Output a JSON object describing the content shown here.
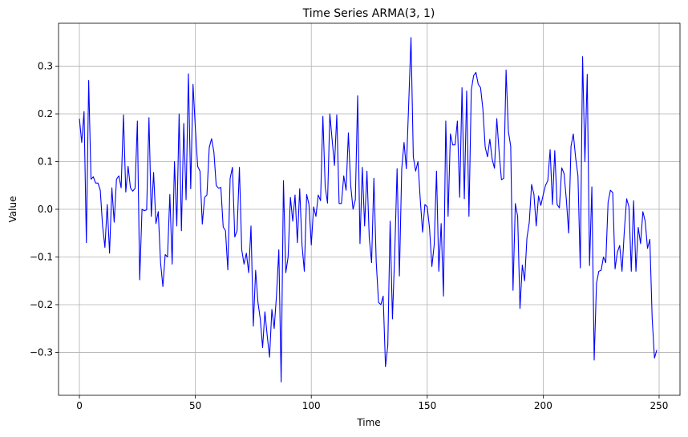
{
  "chart_data": {
    "type": "line",
    "title": "Time Series ARMA(3, 1)",
    "xlabel": "Time",
    "ylabel": "Value",
    "xlim": [
      -9,
      259
    ],
    "ylim": [
      -0.39,
      0.39
    ],
    "xticks": [
      0,
      50,
      100,
      150,
      200,
      250
    ],
    "yticks": [
      -0.3,
      -0.2,
      -0.1,
      0.0,
      0.1,
      0.2,
      0.3
    ],
    "ytick_labels": [
      "−0.3",
      "−0.2",
      "−0.1",
      "0.0",
      "0.1",
      "0.2",
      "0.3"
    ],
    "grid": true,
    "series": [
      {
        "color": "#0000ff",
        "x_start": 0,
        "x_step": 1,
        "values": [
          0.19,
          0.14,
          0.205,
          -0.07,
          0.27,
          0.063,
          0.068,
          0.055,
          0.055,
          0.04,
          -0.035,
          -0.08,
          0.01,
          -0.092,
          0.045,
          -0.027,
          0.063,
          0.07,
          0.045,
          0.198,
          0.036,
          0.09,
          0.045,
          0.038,
          0.044,
          0.185,
          -0.148,
          0.0,
          -0.003,
          -0.001,
          0.192,
          -0.015,
          0.077,
          -0.03,
          -0.005,
          -0.112,
          -0.162,
          -0.095,
          -0.1,
          0.031,
          -0.115,
          0.1,
          -0.035,
          0.2,
          -0.045,
          0.18,
          0.02,
          0.284,
          0.043,
          0.262,
          0.17,
          0.09,
          0.08,
          -0.031,
          0.025,
          0.03,
          0.13,
          0.148,
          0.12,
          0.05,
          0.044,
          0.046,
          -0.037,
          -0.045,
          -0.127,
          0.065,
          0.088,
          -0.058,
          -0.045,
          0.088,
          -0.085,
          -0.115,
          -0.092,
          -0.133,
          -0.035,
          -0.245,
          -0.128,
          -0.195,
          -0.23,
          -0.29,
          -0.215,
          -0.265,
          -0.31,
          -0.21,
          -0.25,
          -0.18,
          -0.085,
          -0.362,
          0.06,
          -0.133,
          -0.1,
          0.025,
          -0.025,
          0.03,
          -0.07,
          0.043,
          -0.075,
          -0.13,
          0.031,
          0.01,
          -0.075,
          0.005,
          -0.015,
          0.03,
          0.018,
          0.195,
          0.047,
          0.013,
          0.2,
          0.145,
          0.092,
          0.198,
          0.012,
          0.012,
          0.07,
          0.04,
          0.16,
          0.05,
          0.0,
          0.02,
          0.238,
          -0.072,
          0.088,
          -0.035,
          0.08,
          -0.06,
          -0.112,
          0.065,
          -0.11,
          -0.195,
          -0.2,
          -0.182,
          -0.33,
          -0.285,
          -0.025,
          -0.23,
          -0.09,
          0.085,
          -0.14,
          0.085,
          0.14,
          0.085,
          0.22,
          0.36,
          0.11,
          0.08,
          0.1,
          0.02,
          -0.048,
          0.01,
          0.005,
          -0.04,
          -0.12,
          -0.075,
          0.08,
          -0.13,
          -0.03,
          -0.182,
          0.185,
          -0.015,
          0.158,
          0.135,
          0.135,
          0.185,
          0.025,
          0.255,
          0.022,
          0.248,
          -0.015,
          0.25,
          0.28,
          0.287,
          0.262,
          0.255,
          0.21,
          0.13,
          0.11,
          0.147,
          0.105,
          0.086,
          0.19,
          0.12,
          0.062,
          0.065,
          0.292,
          0.163,
          0.132,
          -0.17,
          0.012,
          -0.015,
          -0.208,
          -0.117,
          -0.15,
          -0.06,
          -0.028,
          0.052,
          0.032,
          -0.035,
          0.028,
          0.008,
          0.03,
          0.05,
          0.06,
          0.125,
          0.01,
          0.123,
          0.01,
          0.003,
          0.087,
          0.075,
          0.02,
          -0.05,
          0.132,
          0.158,
          0.108,
          0.07,
          -0.123,
          0.32,
          0.1,
          0.283,
          -0.118,
          0.047,
          -0.316,
          -0.155,
          -0.13,
          -0.128,
          -0.1,
          -0.112,
          0.015,
          0.04,
          0.035,
          -0.125,
          -0.09,
          -0.076,
          -0.13,
          -0.045,
          0.022,
          0.005,
          -0.13,
          0.018,
          -0.13,
          -0.038,
          -0.072,
          -0.005,
          -0.025,
          -0.082,
          -0.063,
          -0.228,
          -0.312,
          -0.295
        ]
      }
    ]
  }
}
